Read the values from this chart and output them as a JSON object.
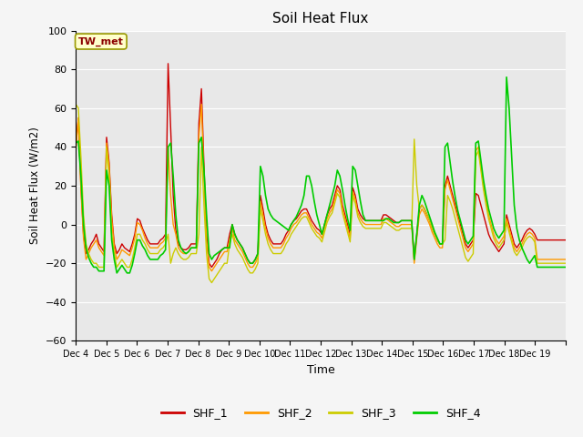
{
  "title": "Soil Heat Flux",
  "xlabel": "Time",
  "ylabel": "Soil Heat Flux (W/m2)",
  "ylim": [
    -60,
    100
  ],
  "annotation": "TW_met",
  "legend_labels": [
    "SHF_1",
    "SHF_2",
    "SHF_3",
    "SHF_4"
  ],
  "colors": {
    "SHF_1": "#cc0000",
    "SHF_2": "#ff9900",
    "SHF_3": "#cccc00",
    "SHF_4": "#00cc00"
  },
  "xtick_labels": [
    "Dec 4",
    "Dec 5",
    "Dec 6",
    "Dec 7",
    "Dec 8",
    "Dec 9",
    "Dec 10",
    "Dec 11",
    "Dec 12",
    "Dec 13",
    "Dec 14",
    "Dec 15",
    "Dec 16",
    "Dec 17",
    "Dec 18",
    "Dec 19"
  ],
  "plot_bg": "#e8e8e8",
  "fig_bg": "#f5f5f5",
  "grid_color": "#ffffff",
  "yticks": [
    -60,
    -40,
    -20,
    0,
    20,
    40,
    60,
    80,
    100
  ],
  "shf1": [
    40,
    55,
    20,
    -5,
    -15,
    -13,
    -10,
    -8,
    -5,
    -10,
    -12,
    -14,
    45,
    32,
    5,
    -10,
    -15,
    -13,
    -10,
    -12,
    -13,
    -14,
    -10,
    -5,
    3,
    2,
    -2,
    -5,
    -8,
    -10,
    -10,
    -10,
    -10,
    -8,
    -7,
    -5,
    83,
    50,
    15,
    -3,
    -10,
    -12,
    -13,
    -13,
    -12,
    -10,
    -10,
    -10,
    52,
    70,
    30,
    -5,
    -20,
    -22,
    -20,
    -18,
    -15,
    -13,
    -12,
    -12,
    -5,
    0,
    -5,
    -8,
    -10,
    -12,
    -15,
    -18,
    -20,
    -20,
    -18,
    -15,
    15,
    8,
    0,
    -5,
    -8,
    -10,
    -10,
    -10,
    -10,
    -8,
    -5,
    -3,
    0,
    2,
    3,
    5,
    7,
    8,
    8,
    5,
    2,
    0,
    -2,
    -3,
    -5,
    0,
    5,
    8,
    10,
    15,
    20,
    18,
    10,
    5,
    0,
    -5,
    19,
    15,
    8,
    5,
    3,
    2,
    2,
    2,
    2,
    2,
    2,
    2,
    5,
    5,
    4,
    3,
    2,
    1,
    1,
    2,
    2,
    2,
    2,
    2,
    -18,
    -5,
    8,
    10,
    8,
    5,
    2,
    -2,
    -5,
    -8,
    -10,
    -10,
    20,
    25,
    20,
    15,
    10,
    5,
    0,
    -5,
    -10,
    -12,
    -10,
    -8,
    16,
    15,
    10,
    5,
    0,
    -5,
    -8,
    -10,
    -12,
    -14,
    -12,
    -10,
    5,
    0,
    -5,
    -10,
    -12,
    -10,
    -8,
    -5,
    -3,
    -2,
    -3,
    -5,
    -8,
    -8,
    -8,
    -8,
    -8,
    -8,
    -8,
    -8,
    -8,
    -8,
    -8,
    -8
  ],
  "shf2": [
    38,
    55,
    18,
    -7,
    -18,
    -15,
    -12,
    -10,
    -8,
    -12,
    -14,
    -16,
    42,
    30,
    3,
    -12,
    -18,
    -16,
    -13,
    -14,
    -15,
    -16,
    -12,
    -7,
    1,
    0,
    -3,
    -7,
    -10,
    -12,
    -12,
    -12,
    -12,
    -10,
    -9,
    -7,
    40,
    15,
    0,
    -5,
    -12,
    -14,
    -15,
    -15,
    -14,
    -12,
    -12,
    -12,
    45,
    62,
    25,
    -8,
    -22,
    -24,
    -22,
    -20,
    -18,
    -16,
    -14,
    -14,
    -8,
    -2,
    -8,
    -10,
    -12,
    -14,
    -17,
    -20,
    -22,
    -22,
    -20,
    -17,
    12,
    5,
    -2,
    -7,
    -10,
    -12,
    -12,
    -12,
    -12,
    -10,
    -7,
    -5,
    -2,
    0,
    1,
    3,
    5,
    6,
    6,
    3,
    0,
    -2,
    -4,
    -5,
    -7,
    -2,
    3,
    6,
    8,
    13,
    18,
    16,
    8,
    3,
    -2,
    -7,
    17,
    13,
    6,
    3,
    1,
    0,
    0,
    0,
    0,
    0,
    0,
    0,
    3,
    3,
    2,
    1,
    0,
    -1,
    -1,
    0,
    0,
    0,
    0,
    0,
    -20,
    -7,
    5,
    8,
    6,
    3,
    0,
    -4,
    -7,
    -10,
    -12,
    -12,
    18,
    23,
    18,
    13,
    8,
    3,
    -2,
    -7,
    -12,
    -14,
    -12,
    -10,
    38,
    40,
    30,
    20,
    12,
    5,
    0,
    -5,
    -8,
    -10,
    -8,
    -6,
    3,
    -2,
    -7,
    -12,
    -14,
    -12,
    -10,
    -7,
    -5,
    -4,
    -5,
    -7,
    -18,
    -18,
    -18,
    -18,
    -18,
    -18,
    -18,
    -18,
    -18,
    -18,
    -18,
    -18
  ],
  "shf3": [
    62,
    60,
    35,
    5,
    -10,
    -15,
    -18,
    -20,
    -20,
    -22,
    -22,
    -22,
    40,
    25,
    -5,
    -15,
    -22,
    -20,
    -18,
    -20,
    -22,
    -22,
    -18,
    -12,
    -5,
    -5,
    -8,
    -10,
    -13,
    -15,
    -15,
    -15,
    -15,
    -13,
    -12,
    -10,
    -5,
    -20,
    -15,
    -12,
    -15,
    -17,
    -18,
    -18,
    -17,
    -15,
    -15,
    -15,
    -5,
    40,
    10,
    -15,
    -28,
    -30,
    -28,
    -26,
    -24,
    -22,
    -20,
    -20,
    -10,
    -5,
    -10,
    -13,
    -15,
    -17,
    -20,
    -23,
    -25,
    -25,
    -23,
    -20,
    8,
    2,
    -5,
    -10,
    -13,
    -15,
    -15,
    -15,
    -15,
    -13,
    -10,
    -8,
    -5,
    -3,
    -1,
    1,
    3,
    4,
    4,
    1,
    -2,
    -4,
    -6,
    -7,
    -9,
    -4,
    1,
    4,
    6,
    11,
    16,
    14,
    6,
    1,
    -4,
    -9,
    15,
    11,
    4,
    1,
    -1,
    -2,
    -2,
    -2,
    -2,
    -2,
    -2,
    -2,
    1,
    1,
    0,
    -1,
    -2,
    -3,
    -3,
    -2,
    -2,
    -2,
    -2,
    -2,
    44,
    20,
    8,
    10,
    8,
    5,
    2,
    -2,
    -5,
    -8,
    -10,
    -10,
    -8,
    15,
    12,
    8,
    3,
    -2,
    -7,
    -12,
    -17,
    -19,
    -17,
    -15,
    35,
    38,
    28,
    18,
    10,
    3,
    -2,
    -7,
    -10,
    -12,
    -10,
    -8,
    1,
    -4,
    -9,
    -14,
    -16,
    -14,
    -12,
    -9,
    -7,
    -6,
    -7,
    -9,
    -20,
    -20,
    -20,
    -20,
    -20,
    -20,
    -20,
    -20,
    -20,
    -20,
    -20,
    -20
  ],
  "shf4": [
    42,
    43,
    25,
    0,
    -12,
    -17,
    -20,
    -22,
    -22,
    -24,
    -24,
    -24,
    28,
    20,
    -8,
    -18,
    -25,
    -23,
    -21,
    -23,
    -25,
    -25,
    -21,
    -15,
    -8,
    -8,
    -11,
    -13,
    -16,
    -18,
    -18,
    -18,
    -18,
    -16,
    -15,
    -13,
    40,
    42,
    25,
    5,
    -8,
    -12,
    -14,
    -15,
    -14,
    -12,
    -12,
    -12,
    42,
    45,
    28,
    5,
    -15,
    -18,
    -16,
    -15,
    -14,
    -13,
    -12,
    -12,
    -12,
    0,
    -5,
    -8,
    -10,
    -12,
    -15,
    -18,
    -20,
    -20,
    -18,
    -15,
    30,
    25,
    15,
    8,
    5,
    3,
    2,
    1,
    0,
    -1,
    -2,
    -3,
    0,
    2,
    4,
    7,
    10,
    15,
    25,
    25,
    20,
    12,
    5,
    0,
    -5,
    0,
    5,
    10,
    15,
    20,
    28,
    25,
    18,
    10,
    3,
    -3,
    30,
    28,
    20,
    12,
    5,
    2,
    2,
    2,
    2,
    2,
    2,
    2,
    2,
    3,
    3,
    2,
    1,
    1,
    1,
    2,
    2,
    2,
    2,
    2,
    -18,
    -5,
    10,
    15,
    12,
    8,
    4,
    0,
    -4,
    -7,
    -10,
    -10,
    40,
    42,
    32,
    22,
    14,
    7,
    2,
    -3,
    -8,
    -10,
    -8,
    -6,
    42,
    43,
    33,
    23,
    15,
    8,
    3,
    -2,
    -5,
    -7,
    -5,
    -3,
    76,
    60,
    35,
    10,
    -2,
    -8,
    -12,
    -15,
    -18,
    -20,
    -18,
    -16,
    -22,
    -22,
    -22,
    -22,
    -22,
    -22,
    -22,
    -22,
    -22,
    -22,
    -22,
    -22
  ]
}
